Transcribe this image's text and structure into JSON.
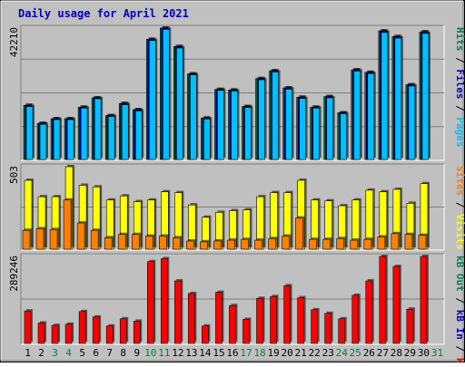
{
  "title": "Daily usage for April 2021",
  "colors": {
    "background": "#c0c0c0",
    "title": "#0000c0",
    "pages": "#00c0ff",
    "files": "#0000c0",
    "hits": "#008040",
    "visits": "#ffff00",
    "sites": "#ff8000",
    "kb_out": "#008040",
    "kb_in": "#0000c0",
    "kb_f": "#ff0000"
  },
  "chart_data": [
    {
      "type": "bar",
      "panel": "top",
      "max_label": "42210",
      "ylim": [
        0,
        42210
      ],
      "right_labels": [
        "Pages",
        "Files",
        "Hits"
      ],
      "categories": [
        "1",
        "2",
        "3",
        "4",
        "5",
        "6",
        "7",
        "8",
        "9",
        "10",
        "11",
        "12",
        "13",
        "14",
        "15",
        "16",
        "17",
        "18",
        "19",
        "20",
        "21",
        "22",
        "23",
        "24",
        "25",
        "26",
        "27",
        "28",
        "29",
        "30",
        "31"
      ],
      "series": [
        {
          "name": "Hits",
          "values": [
            17400,
            11600,
            13100,
            13100,
            16800,
            19800,
            14100,
            18000,
            16000,
            38600,
            42210,
            36300,
            27500,
            13300,
            22500,
            22300,
            17000,
            26000,
            28500,
            23000,
            20000,
            16800,
            20200,
            15000,
            28800,
            28000,
            41300,
            39500,
            24000,
            41000,
            0
          ]
        },
        {
          "name": "Files",
          "values": [
            17400,
            11600,
            13100,
            13100,
            16800,
            19800,
            14100,
            18000,
            16000,
            38600,
            42210,
            36300,
            27500,
            13300,
            22500,
            22300,
            17000,
            26000,
            28500,
            23000,
            20000,
            16800,
            20200,
            15000,
            28800,
            28000,
            41300,
            39500,
            24000,
            41000,
            0
          ]
        },
        {
          "name": "Pages",
          "values": [
            17000,
            11300,
            12800,
            12800,
            16500,
            19500,
            13800,
            17600,
            15600,
            38200,
            41800,
            35800,
            27200,
            13000,
            22200,
            22000,
            16700,
            25600,
            28100,
            22600,
            19600,
            16500,
            19800,
            14700,
            28400,
            27600,
            40800,
            39000,
            23600,
            40500,
            0
          ]
        }
      ]
    },
    {
      "type": "bar",
      "panel": "middle",
      "max_label": "503",
      "ylim": [
        0,
        503
      ],
      "right_labels": [
        "Visits",
        "Sites"
      ],
      "categories": [
        "1",
        "2",
        "3",
        "4",
        "5",
        "6",
        "7",
        "8",
        "9",
        "10",
        "11",
        "12",
        "13",
        "14",
        "15",
        "16",
        "17",
        "18",
        "19",
        "20",
        "21",
        "22",
        "23",
        "24",
        "25",
        "26",
        "27",
        "28",
        "29",
        "30",
        "31"
      ],
      "series": [
        {
          "name": "Visits",
          "values": [
            420,
            320,
            320,
            503,
            390,
            380,
            300,
            325,
            290,
            300,
            350,
            345,
            270,
            195,
            225,
            235,
            240,
            320,
            345,
            345,
            420,
            300,
            295,
            265,
            300,
            360,
            350,
            365,
            280,
            400,
            0
          ]
        },
        {
          "name": "Sites",
          "values": [
            115,
            125,
            120,
            300,
            160,
            115,
            70,
            90,
            90,
            80,
            80,
            70,
            50,
            45,
            50,
            55,
            60,
            55,
            65,
            80,
            190,
            60,
            60,
            65,
            55,
            60,
            75,
            95,
            90,
            85,
            0
          ]
        }
      ]
    },
    {
      "type": "bar",
      "panel": "bottom",
      "max_label": "289246",
      "ylim": [
        0,
        289246
      ],
      "right_labels": [
        "kB F",
        "kB In",
        "kB Out"
      ],
      "categories": [
        "1",
        "2",
        "3",
        "4",
        "5",
        "6",
        "7",
        "8",
        "9",
        "10",
        "11",
        "12",
        "13",
        "14",
        "15",
        "16",
        "17",
        "18",
        "19",
        "20",
        "21",
        "22",
        "23",
        "24",
        "25",
        "26",
        "27",
        "28",
        "29",
        "30",
        "31"
      ],
      "series": [
        {
          "name": "kB F",
          "values": [
            108000,
            68000,
            60000,
            64000,
            106000,
            88000,
            58000,
            82000,
            74000,
            272000,
            282000,
            208000,
            166000,
            58000,
            170000,
            126000,
            80000,
            150000,
            156000,
            192000,
            152000,
            112000,
            100000,
            82000,
            160000,
            208000,
            289246,
            256000,
            114000,
            289246,
            0
          ]
        }
      ]
    }
  ],
  "day_labels": [
    "1",
    "2",
    "3",
    "4",
    "5",
    "6",
    "7",
    "8",
    "9",
    "10",
    "11",
    "12",
    "13",
    "14",
    "15",
    "16",
    "17",
    "18",
    "19",
    "20",
    "21",
    "22",
    "23",
    "24",
    "25",
    "26",
    "27",
    "28",
    "29",
    "30",
    "31"
  ],
  "weekend_days": [
    3,
    4,
    10,
    11,
    17,
    18,
    24,
    25,
    31
  ]
}
